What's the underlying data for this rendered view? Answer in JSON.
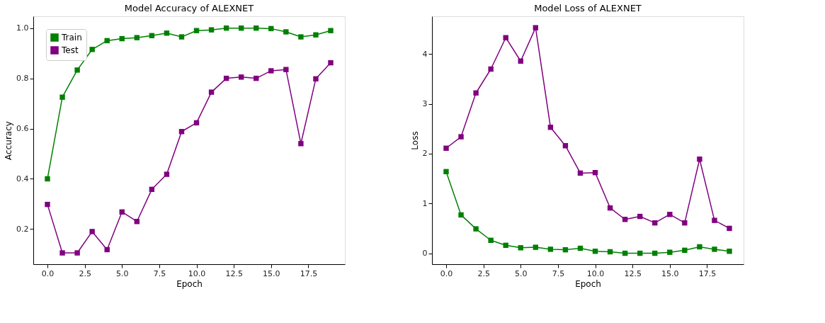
{
  "chart_data": [
    {
      "type": "line",
      "title": "Model Accuracy of ALEXNET",
      "xlabel": "Epoch",
      "ylabel": "Accuracy",
      "x": [
        0,
        1,
        2,
        3,
        4,
        5,
        6,
        7,
        8,
        9,
        10,
        11,
        12,
        13,
        14,
        15,
        16,
        17,
        18,
        19
      ],
      "xlim": [
        -0.95,
        19.95
      ],
      "xticks": [
        {
          "value": 0,
          "label": "0.0"
        },
        {
          "value": 2.5,
          "label": "2.5"
        },
        {
          "value": 5,
          "label": "5.0"
        },
        {
          "value": 7.5,
          "label": "7.5"
        },
        {
          "value": 10,
          "label": "10.0"
        },
        {
          "value": 12.5,
          "label": "12.5"
        },
        {
          "value": 15,
          "label": "15.0"
        },
        {
          "value": 17.5,
          "label": "17.5"
        }
      ],
      "ylim": [
        0.06,
        1.047
      ],
      "yticks": [
        0.2,
        0.4,
        0.6,
        0.8,
        {
          "value": 1,
          "label": "1.0"
        }
      ],
      "series": [
        {
          "name": "Train",
          "color": "#008000",
          "values": [
            0.4,
            0.725,
            0.833,
            0.915,
            0.95,
            0.958,
            0.962,
            0.97,
            0.98,
            0.965,
            0.99,
            0.993,
            1.0,
            1.0,
            1.0,
            0.998,
            0.985,
            0.965,
            0.973,
            0.99
          ]
        },
        {
          "name": "Test",
          "color": "#800080",
          "values": [
            0.298,
            0.105,
            0.105,
            0.19,
            0.118,
            0.268,
            0.23,
            0.358,
            0.418,
            0.588,
            0.623,
            0.745,
            0.8,
            0.805,
            0.8,
            0.83,
            0.835,
            0.54,
            0.798,
            0.862
          ]
        }
      ],
      "marker": "square",
      "line_style": "solid",
      "legend": "top left",
      "grid": false
    },
    {
      "type": "line",
      "title": "Model Loss of ALEXNET",
      "xlabel": "Epoch",
      "ylabel": "Loss",
      "x": [
        0,
        1,
        2,
        3,
        4,
        5,
        6,
        7,
        8,
        9,
        10,
        11,
        12,
        13,
        14,
        15,
        16,
        17,
        18,
        19
      ],
      "xlim": [
        -0.95,
        19.95
      ],
      "xticks": [
        {
          "value": 0,
          "label": "0.0"
        },
        {
          "value": 2.5,
          "label": "2.5"
        },
        {
          "value": 5,
          "label": "5.0"
        },
        {
          "value": 7.5,
          "label": "7.5"
        },
        {
          "value": 10,
          "label": "10.0"
        },
        {
          "value": 12.5,
          "label": "12.5"
        },
        {
          "value": 15,
          "label": "15.0"
        },
        {
          "value": 17.5,
          "label": "17.5"
        }
      ],
      "ylim": [
        -0.22,
        4.76
      ],
      "yticks": [
        0,
        1,
        2,
        3,
        4
      ],
      "series": [
        {
          "name": "Train",
          "color": "#008000",
          "values": [
            1.64,
            0.77,
            0.49,
            0.26,
            0.16,
            0.11,
            0.12,
            0.08,
            0.07,
            0.1,
            0.04,
            0.03,
            0.0,
            0.0,
            0.0,
            0.02,
            0.06,
            0.13,
            0.08,
            0.04
          ]
        },
        {
          "name": "Test",
          "color": "#800080",
          "values": [
            2.11,
            2.34,
            3.22,
            3.7,
            4.33,
            3.86,
            4.53,
            2.53,
            2.16,
            1.61,
            1.62,
            0.91,
            0.68,
            0.74,
            0.61,
            0.78,
            0.61,
            1.89,
            0.66,
            0.5
          ]
        }
      ],
      "marker": "square",
      "line_style": "solid",
      "legend": "top left",
      "grid": false
    }
  ]
}
